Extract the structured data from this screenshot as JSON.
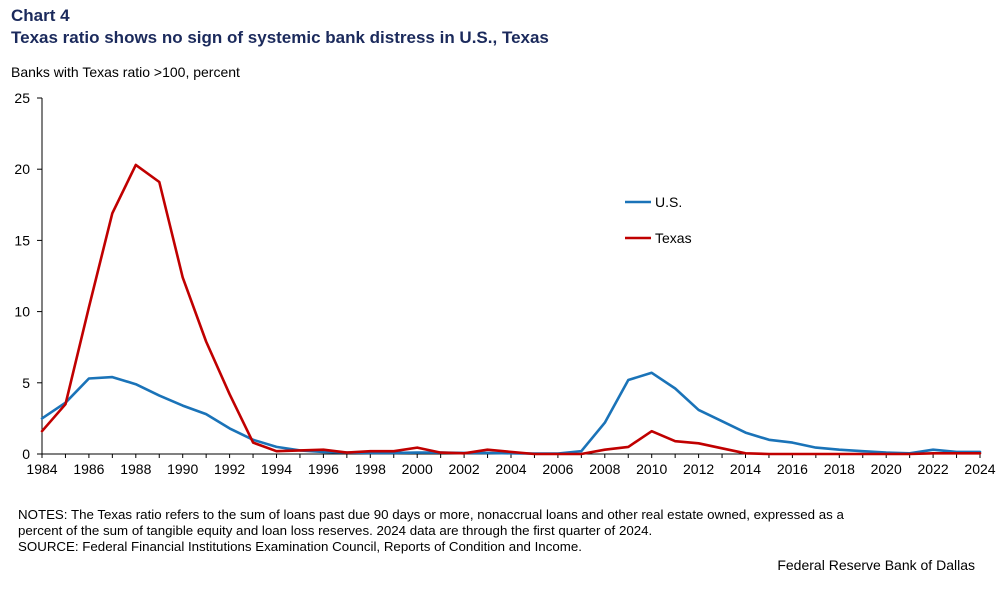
{
  "header": {
    "chart_number": "Chart 4",
    "title": "Texas ratio shows no sign of systemic bank distress in U.S., Texas"
  },
  "chart_data": {
    "type": "line",
    "title": "Texas ratio shows no sign of systemic bank distress in U.S., Texas",
    "ylabel": "Banks with Texas ratio >100, percent",
    "xlabel": "",
    "xlim": [
      1984,
      2024
    ],
    "ylim": [
      0,
      25
    ],
    "y_ticks": [
      0,
      5,
      10,
      15,
      20,
      25
    ],
    "x_ticks": [
      1984,
      1986,
      1988,
      1990,
      1992,
      1994,
      1996,
      1998,
      2000,
      2002,
      2004,
      2006,
      2008,
      2010,
      2012,
      2014,
      2016,
      2018,
      2020,
      2022,
      2024
    ],
    "grid": false,
    "legend_position": "right",
    "x": [
      1984,
      1985,
      1986,
      1987,
      1988,
      1989,
      1990,
      1991,
      1992,
      1993,
      1994,
      1995,
      1996,
      1997,
      1998,
      1999,
      2000,
      2001,
      2002,
      2003,
      2004,
      2005,
      2006,
      2007,
      2008,
      2009,
      2010,
      2011,
      2012,
      2013,
      2014,
      2015,
      2016,
      2017,
      2018,
      2019,
      2020,
      2021,
      2022,
      2023,
      2024
    ],
    "series": [
      {
        "name": "U.S.",
        "color": "#1a73b8",
        "values": [
          2.5,
          3.6,
          5.3,
          5.4,
          4.9,
          4.1,
          3.4,
          2.8,
          1.8,
          1.0,
          0.5,
          0.25,
          0.15,
          0.1,
          0.08,
          0.08,
          0.1,
          0.1,
          0.08,
          0.08,
          0.05,
          0.03,
          0.03,
          0.2,
          2.2,
          5.2,
          5.7,
          4.6,
          3.1,
          2.3,
          1.5,
          1.0,
          0.8,
          0.45,
          0.3,
          0.2,
          0.1,
          0.05,
          0.3,
          0.15,
          0.15
        ]
      },
      {
        "name": "Texas",
        "color": "#c00000",
        "values": [
          1.6,
          3.5,
          10.3,
          16.9,
          20.3,
          19.1,
          12.4,
          7.9,
          4.2,
          0.8,
          0.2,
          0.25,
          0.3,
          0.1,
          0.2,
          0.2,
          0.45,
          0.1,
          0.05,
          0.3,
          0.15,
          0.0,
          0.0,
          0.0,
          0.3,
          0.5,
          1.6,
          0.9,
          0.75,
          0.4,
          0.05,
          0.0,
          0.0,
          0.0,
          0.0,
          0.0,
          0.0,
          0.0,
          0.05,
          0.05,
          0.05
        ]
      }
    ]
  },
  "notes": {
    "line1": "NOTES: The Texas ratio refers to the sum of loans past due 90 days or more, nonaccrual loans and other real estate owned, expressed as a",
    "line2": "percent of the sum of tangible equity and loan loss reserves. 2024 data are through the first quarter of 2024.",
    "line3": "SOURCE: Federal Financial Institutions Examination Council, Reports of Condition and Income."
  },
  "credit": "Federal Reserve Bank of Dallas"
}
